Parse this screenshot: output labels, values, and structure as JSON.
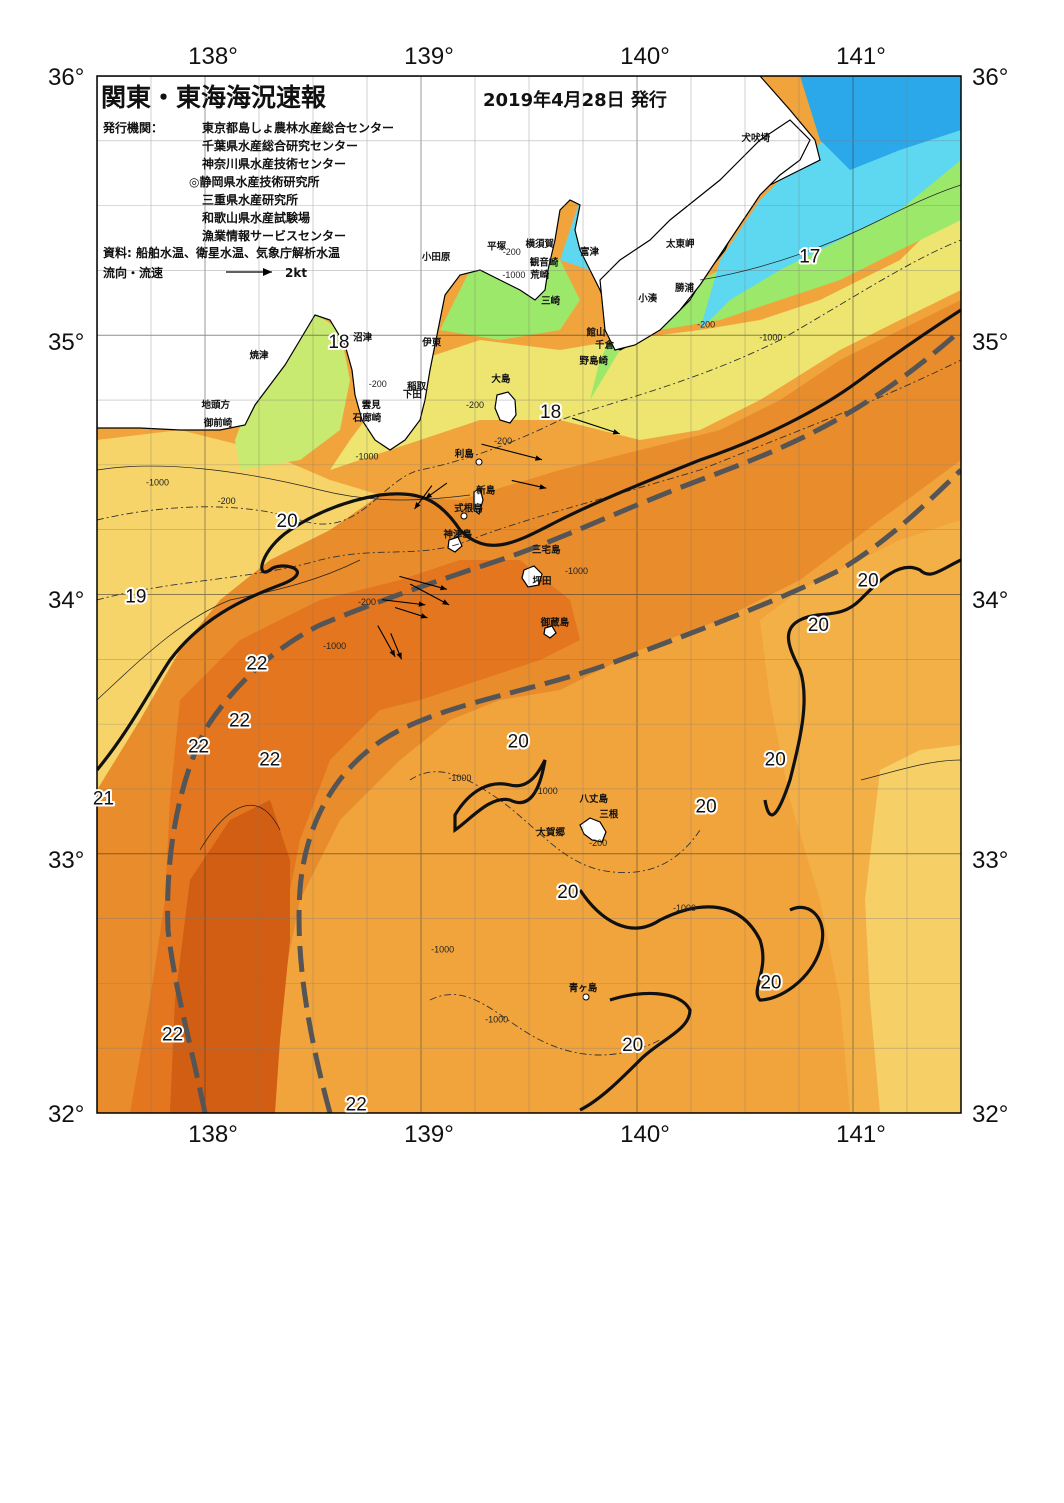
{
  "title": "関東・東海海況速報",
  "date": "2019年4月28日 発行",
  "issuers_label": "発行機関：",
  "issuers": [
    "東京都島しょ農林水産総合センター",
    "千葉県水産総合研究センター",
    "神奈川県水産技術センター",
    "◎静岡県水産技術研究所",
    "三重県水産研究所",
    "和歌山県水産試験場",
    "漁業情報サービスセンター"
  ],
  "sources": "資料: 船舶水温、衛星水温、気象庁解析水温",
  "flow_label": "流向・流速",
  "flow_scale": "2kt",
  "axes": {
    "lon_labels": [
      "138°",
      "139°",
      "140°",
      "141°"
    ],
    "lat_labels": [
      "36°",
      "35°",
      "34°",
      "33°",
      "32°"
    ],
    "lon_range": [
      137.5,
      141.5
    ],
    "lat_range": [
      32,
      36
    ]
  },
  "place_names": [
    {
      "name": "犬吠埼",
      "lon": 140.55,
      "lat": 35.75
    },
    {
      "name": "太東岬",
      "lon": 140.2,
      "lat": 35.34
    },
    {
      "name": "勝浦",
      "lon": 140.22,
      "lat": 35.17
    },
    {
      "name": "小湊",
      "lon": 140.05,
      "lat": 35.13
    },
    {
      "name": "富津",
      "lon": 139.78,
      "lat": 35.31
    },
    {
      "name": "横須賀",
      "lon": 139.55,
      "lat": 35.34
    },
    {
      "name": "観音崎",
      "lon": 139.57,
      "lat": 35.27
    },
    {
      "name": "荒崎",
      "lon": 139.55,
      "lat": 35.22
    },
    {
      "name": "三崎",
      "lon": 139.6,
      "lat": 35.12
    },
    {
      "name": "平塚",
      "lon": 139.35,
      "lat": 35.33
    },
    {
      "name": "小田原",
      "lon": 139.07,
      "lat": 35.29
    },
    {
      "name": "館山",
      "lon": 139.81,
      "lat": 35.0
    },
    {
      "name": "千倉",
      "lon": 139.85,
      "lat": 34.95
    },
    {
      "name": "野島崎",
      "lon": 139.8,
      "lat": 34.89
    },
    {
      "name": "大島",
      "lon": 139.37,
      "lat": 34.82
    },
    {
      "name": "沼津",
      "lon": 138.73,
      "lat": 34.98
    },
    {
      "name": "伊東",
      "lon": 139.05,
      "lat": 34.96
    },
    {
      "name": "焼津",
      "lon": 138.25,
      "lat": 34.91
    },
    {
      "name": "稲取",
      "lon": 138.98,
      "lat": 34.79
    },
    {
      "name": "下田",
      "lon": 138.96,
      "lat": 34.76
    },
    {
      "name": "雲見",
      "lon": 138.77,
      "lat": 34.72
    },
    {
      "name": "石廊崎",
      "lon": 138.75,
      "lat": 34.67
    },
    {
      "name": "地頭方",
      "lon": 138.05,
      "lat": 34.72
    },
    {
      "name": "御前崎",
      "lon": 138.06,
      "lat": 34.65
    },
    {
      "name": "利島",
      "lon": 139.2,
      "lat": 34.53
    },
    {
      "name": "新島",
      "lon": 139.3,
      "lat": 34.39
    },
    {
      "name": "式根島",
      "lon": 139.22,
      "lat": 34.32
    },
    {
      "name": "神津島",
      "lon": 139.17,
      "lat": 34.22
    },
    {
      "name": "三宅島",
      "lon": 139.58,
      "lat": 34.16
    },
    {
      "name": "坪田",
      "lon": 139.56,
      "lat": 34.04
    },
    {
      "name": "御蔵島",
      "lon": 139.62,
      "lat": 33.88
    },
    {
      "name": "八丈島",
      "lon": 139.8,
      "lat": 33.2
    },
    {
      "name": "三根",
      "lon": 139.87,
      "lat": 33.14
    },
    {
      "name": "大賀郷",
      "lon": 139.6,
      "lat": 33.07
    },
    {
      "name": "青ヶ島",
      "lon": 139.75,
      "lat": 32.47
    }
  ],
  "temperature_labels": [
    {
      "text": "17",
      "lon": 140.8,
      "lat": 35.28
    },
    {
      "text": "18",
      "lon": 138.62,
      "lat": 34.95
    },
    {
      "text": "18",
      "lon": 139.6,
      "lat": 34.68
    },
    {
      "text": "19",
      "lon": 137.68,
      "lat": 33.97
    },
    {
      "text": "20",
      "lon": 138.38,
      "lat": 34.26
    },
    {
      "text": "20",
      "lon": 141.07,
      "lat": 34.03
    },
    {
      "text": "20",
      "lon": 140.84,
      "lat": 33.86
    },
    {
      "text": "20",
      "lon": 139.45,
      "lat": 33.41
    },
    {
      "text": "20",
      "lon": 140.64,
      "lat": 33.34
    },
    {
      "text": "20",
      "lon": 140.32,
      "lat": 33.16
    },
    {
      "text": "20",
      "lon": 139.68,
      "lat": 32.83
    },
    {
      "text": "20",
      "lon": 140.62,
      "lat": 32.48
    },
    {
      "text": "20",
      "lon": 139.98,
      "lat": 32.24
    },
    {
      "text": "21",
      "lon": 137.53,
      "lat": 33.19
    },
    {
      "text": "22",
      "lon": 138.24,
      "lat": 33.71
    },
    {
      "text": "22",
      "lon": 138.16,
      "lat": 33.49
    },
    {
      "text": "22",
      "lon": 137.97,
      "lat": 33.39
    },
    {
      "text": "22",
      "lon": 138.3,
      "lat": 33.34
    },
    {
      "text": "22",
      "lon": 137.85,
      "lat": 32.28
    },
    {
      "text": "22",
      "lon": 138.7,
      "lat": 32.01
    }
  ],
  "depth_labels": [
    {
      "text": "-1000",
      "lon": 139.43,
      "lat": 35.22
    },
    {
      "text": "-200",
      "lon": 139.42,
      "lat": 35.31
    },
    {
      "text": "-200",
      "lon": 140.32,
      "lat": 35.03
    },
    {
      "text": "-1000",
      "lon": 140.62,
      "lat": 34.98
    },
    {
      "text": "-200",
      "lon": 138.8,
      "lat": 34.8
    },
    {
      "text": "-200",
      "lon": 139.25,
      "lat": 34.72
    },
    {
      "text": "-200",
      "lon": 139.38,
      "lat": 34.58
    },
    {
      "text": "-1000",
      "lon": 138.75,
      "lat": 34.52
    },
    {
      "text": "-1000",
      "lon": 137.78,
      "lat": 34.42
    },
    {
      "text": "-200",
      "lon": 138.1,
      "lat": 34.35
    },
    {
      "text": "-200",
      "lon": 138.75,
      "lat": 33.96
    },
    {
      "text": "-1000",
      "lon": 138.6,
      "lat": 33.79
    },
    {
      "text": "-1000",
      "lon": 139.72,
      "lat": 34.08
    },
    {
      "text": "-1000",
      "lon": 139.18,
      "lat": 33.28
    },
    {
      "text": "-1000",
      "lon": 139.58,
      "lat": 33.23
    },
    {
      "text": "-200",
      "lon": 139.82,
      "lat": 33.03
    },
    {
      "text": "-1000",
      "lon": 140.22,
      "lat": 32.78
    },
    {
      "text": "-1000",
      "lon": 139.1,
      "lat": 32.62
    },
    {
      "text": "-1000",
      "lon": 139.35,
      "lat": 32.35
    }
  ],
  "current_arrows": [
    {
      "lon": 139.28,
      "lat": 34.58,
      "dlon": 0.28,
      "dlat": -0.06
    },
    {
      "lon": 139.42,
      "lat": 34.44,
      "dlon": 0.16,
      "dlat": -0.03
    },
    {
      "lon": 139.7,
      "lat": 34.68,
      "dlon": 0.22,
      "dlat": -0.06
    },
    {
      "lon": 139.05,
      "lat": 34.42,
      "dlon": -0.08,
      "dlat": -0.09
    },
    {
      "lon": 139.12,
      "lat": 34.43,
      "dlon": -0.1,
      "dlat": -0.06
    },
    {
      "lon": 138.9,
      "lat": 34.07,
      "dlon": 0.22,
      "dlat": -0.05
    },
    {
      "lon": 138.95,
      "lat": 34.04,
      "dlon": 0.18,
      "dlat": -0.08
    },
    {
      "lon": 138.82,
      "lat": 33.98,
      "dlon": 0.2,
      "dlat": -0.02
    },
    {
      "lon": 138.88,
      "lat": 33.95,
      "dlon": 0.15,
      "dlat": -0.04
    },
    {
      "lon": 138.8,
      "lat": 33.88,
      "dlon": 0.08,
      "dlat": -0.12
    },
    {
      "lon": 138.86,
      "lat": 33.85,
      "dlon": 0.05,
      "dlat": -0.1
    }
  ],
  "colors": {
    "land": "#ffffff",
    "coast": "#000000",
    "temp_17": "#5fd9f2",
    "temp_17_5": "#9be86a",
    "temp_18": "#c7e96d",
    "temp_18_5": "#ede06d",
    "temp_19": "#f7d46a",
    "temp_19_5": "#f2b44a",
    "temp_20": "#f0a53a",
    "temp_21": "#e8892a",
    "temp_22": "#e07018",
    "temp_23": "#cf5810",
    "kuroshio_axis": "#555555"
  }
}
